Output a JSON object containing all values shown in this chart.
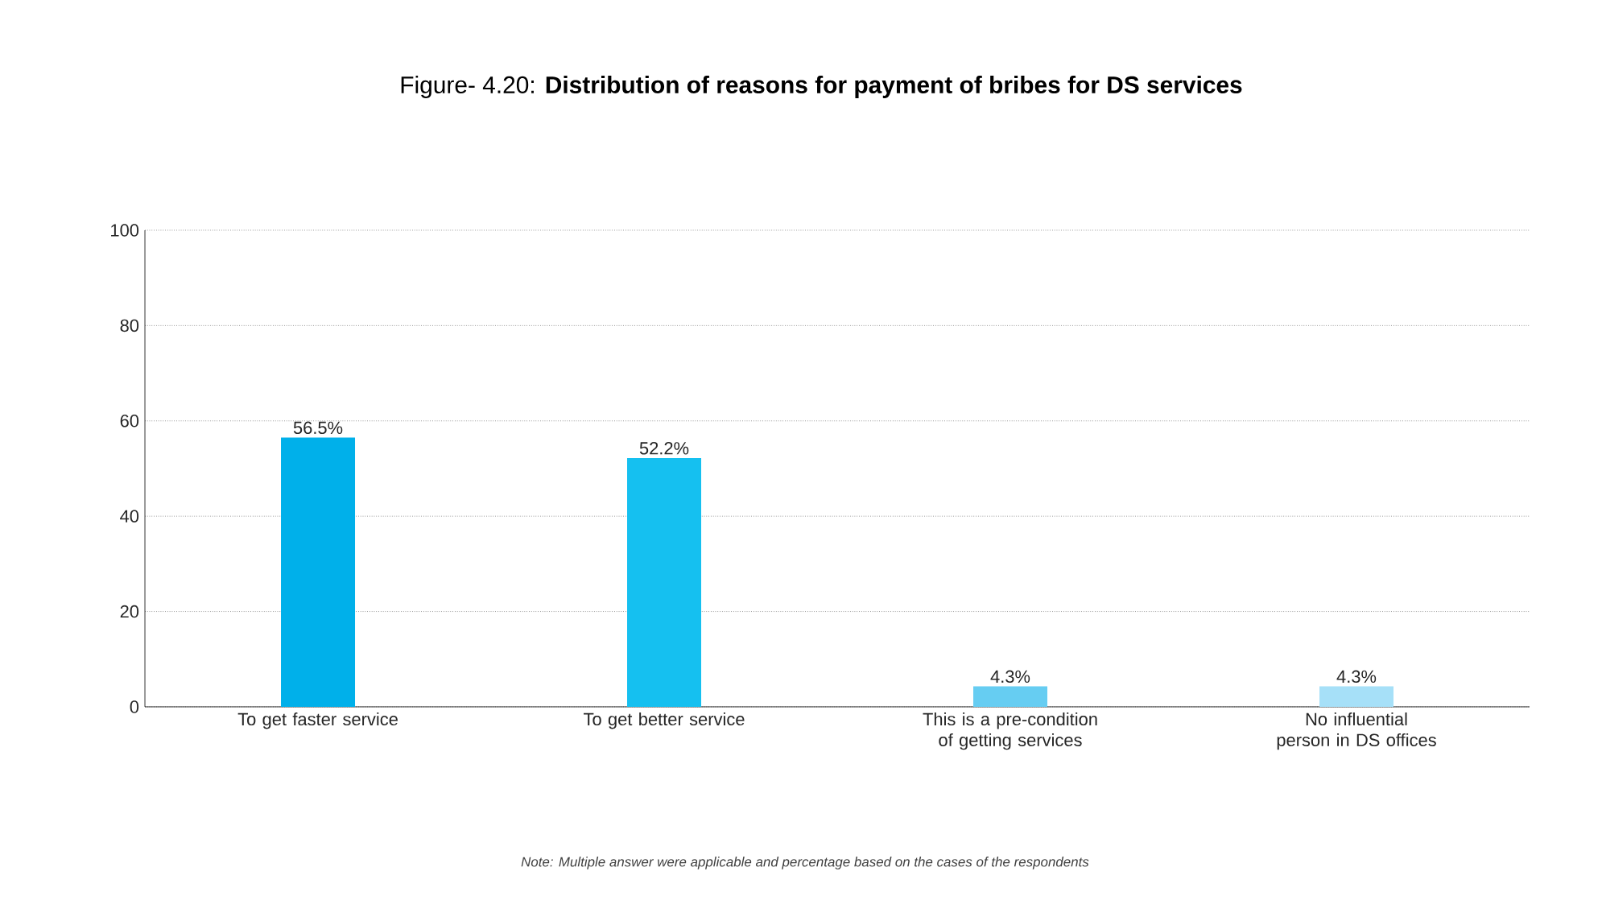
{
  "chart_data": {
    "type": "bar",
    "title": "Figure- 4.20:  **Distribution of reasons for payment of bribes for DS services**",
    "categories": [
      "To get faster service",
      "To get better service",
      "This is a pre-condition of getting services",
      "No influential person in DS offices"
    ],
    "values": [
      56.5,
      52.2,
      4.3,
      4.3
    ],
    "value_labels": [
      "56.5%",
      "52.2%",
      "4.3%",
      "4.3%"
    ],
    "colors": [
      "#00b0ea",
      "#15c0f0",
      "#66cdf2",
      "#a6e0f8"
    ],
    "ylim": [
      0,
      100
    ],
    "yticks": [
      0,
      20,
      40,
      60,
      80,
      100
    ],
    "grid": "y",
    "annotations": [
      "*Note: Multiple answer were applicable and percentage based on the cases of the respondents*"
    ]
  }
}
